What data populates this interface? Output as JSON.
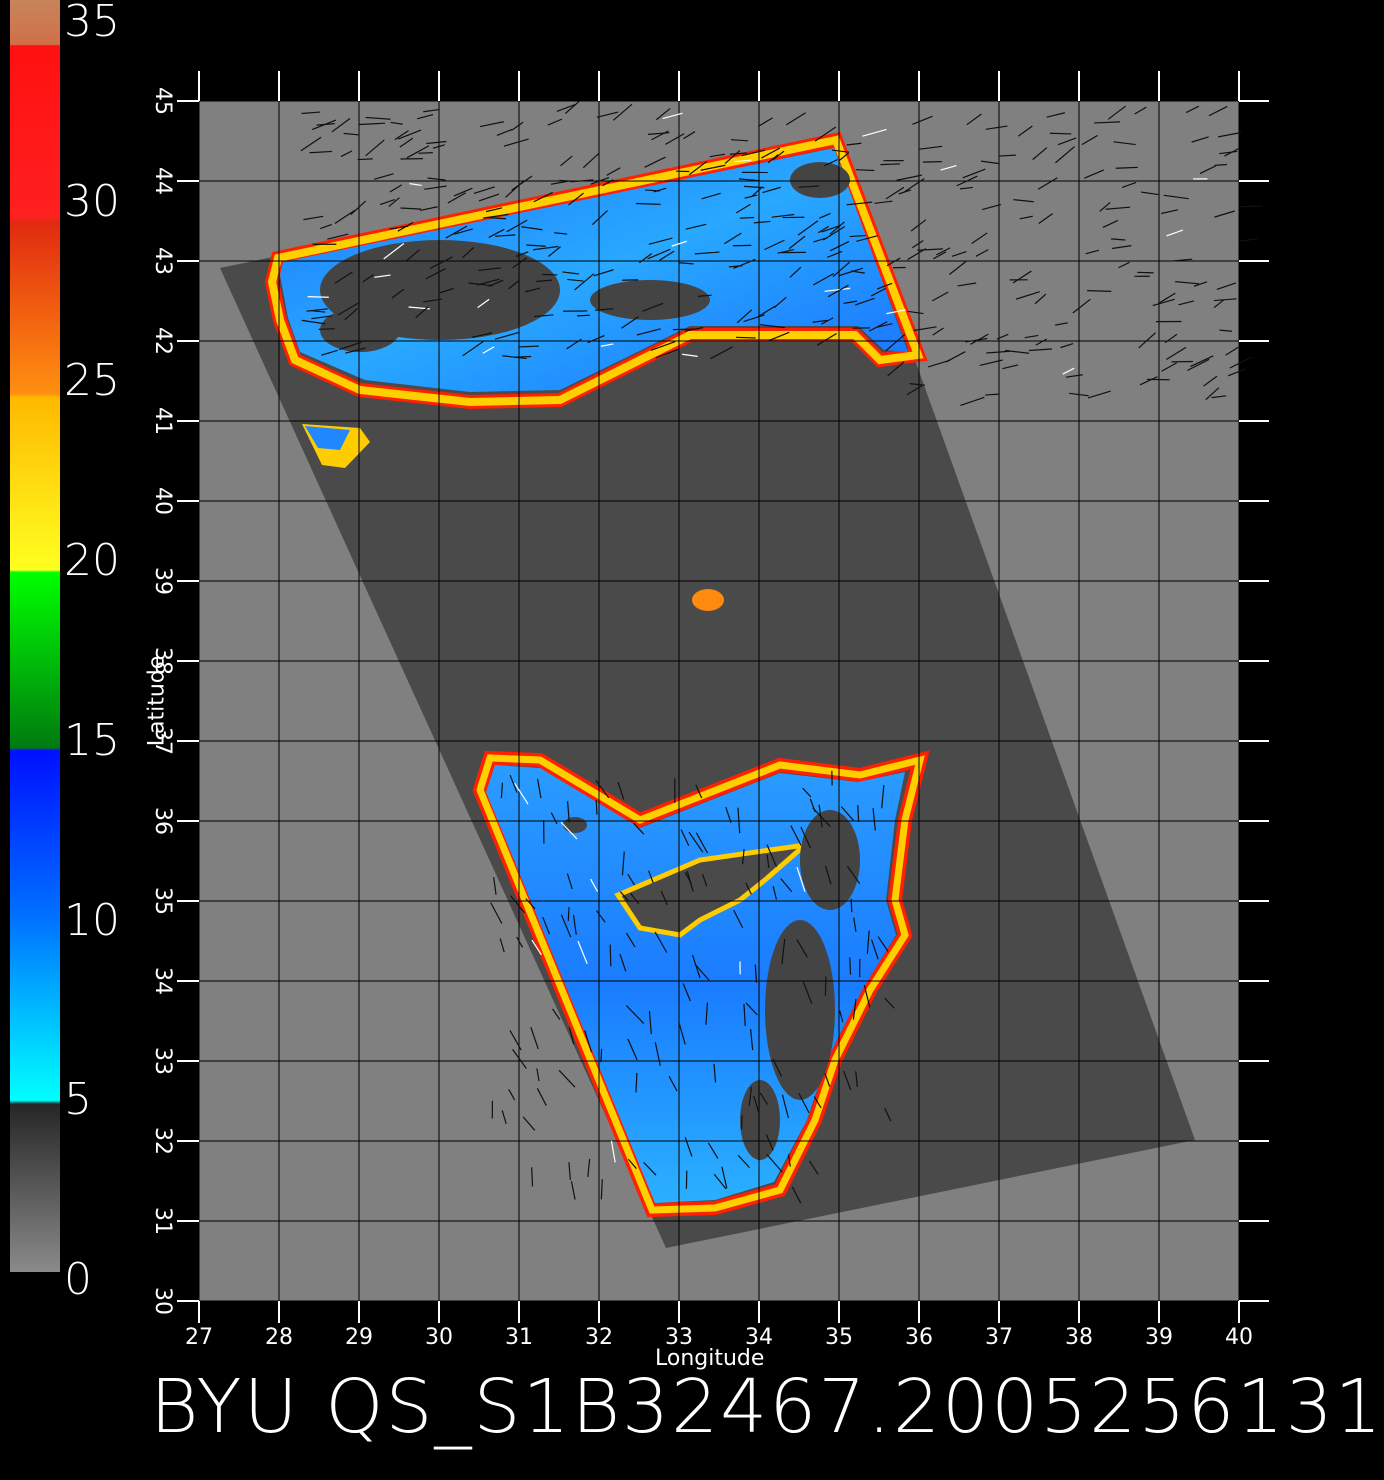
{
  "footer_title": "BYU QS_S1B32467.2005256131",
  "colorbar": {
    "labels": [
      "35",
      "30",
      "25",
      "20",
      "15",
      "10",
      "5",
      "0"
    ],
    "values": [
      35,
      30,
      25,
      20,
      15,
      10,
      5,
      0
    ],
    "range": [
      0,
      35
    ],
    "colors": {
      "brown": "#c8845a",
      "red": "#ff1a1a",
      "orange": "#ff8a10",
      "yellow": "#fff020",
      "green": "#10c010",
      "blue": "#1030ff",
      "cyan": "#00f0ff",
      "dark_gray": "#333333",
      "gray": "#808080"
    }
  },
  "map": {
    "x_axis": {
      "label": "Longitude",
      "ticks": [
        "27",
        "28",
        "29",
        "30",
        "31",
        "32",
        "33",
        "34",
        "35",
        "36",
        "37",
        "38",
        "39",
        "40"
      ],
      "range": [
        27,
        40
      ]
    },
    "y_axis": {
      "label": "Latitude",
      "ticks": [
        "30",
        "31",
        "32",
        "33",
        "34",
        "35",
        "36",
        "37",
        "38",
        "39",
        "40",
        "41",
        "42",
        "43",
        "44",
        "45"
      ],
      "range": [
        30,
        45
      ]
    },
    "grid": true,
    "background_color": "#808080",
    "swath_color": "#4a4a4a",
    "ocean_colors": [
      "#1d6fff",
      "#2aa0ff",
      "#15c8ff"
    ]
  }
}
